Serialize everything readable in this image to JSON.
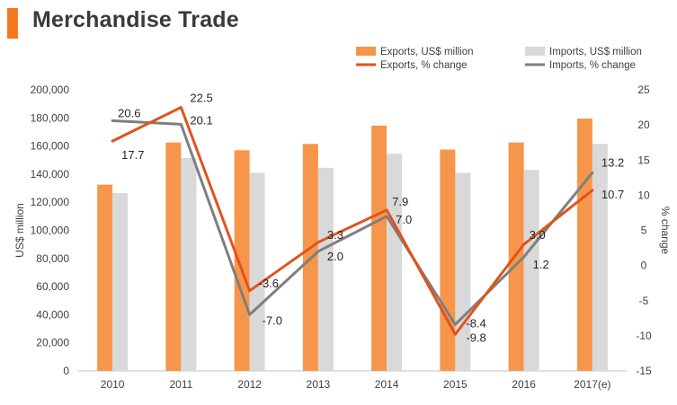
{
  "page": {
    "title": "Merchandise Trade",
    "accent_color": "#F47A20"
  },
  "chart_data": {
    "type": "bar",
    "title": "Merchandise Trade",
    "categories": [
      "2010",
      "2011",
      "2012",
      "2013",
      "2014",
      "2015",
      "2016",
      "2017(e)"
    ],
    "ylabel": "US$ million",
    "y2label": "% change",
    "ylim": [
      0,
      200000
    ],
    "yticks": [
      "0",
      "20,000",
      "40,000",
      "60,000",
      "80,000",
      "100,000",
      "120,000",
      "140,000",
      "160,000",
      "180,000",
      "200,000"
    ],
    "y2lim": [
      -15,
      25
    ],
    "y2ticks": [
      "-15",
      "-10",
      "-5",
      "0",
      "5",
      "10",
      "15",
      "20",
      "25"
    ],
    "grid": false,
    "legend_position": "top-right",
    "bar_series": [
      {
        "name": "Exports, US$ million",
        "color": "#F7964A",
        "values": [
          132500,
          162500,
          157000,
          161500,
          174500,
          157500,
          162500,
          179500
        ]
      },
      {
        "name": "Imports, US$ million",
        "color": "#D9D9D9",
        "values": [
          126500,
          151500,
          141000,
          144500,
          154500,
          141000,
          143000,
          161500
        ]
      }
    ],
    "line_series": [
      {
        "name": "Exports, % change",
        "color": "#E0531C",
        "values": [
          17.7,
          22.5,
          -3.6,
          3.3,
          7.9,
          -9.8,
          3.0,
          10.7
        ],
        "labels": [
          "17.7",
          "22.5",
          "-3.6",
          "3.3",
          "7.9",
          "-9.8",
          "3.0",
          "10.7"
        ]
      },
      {
        "name": "Imports, % change",
        "color": "#7F7F7F",
        "values": [
          20.6,
          20.1,
          -7.0,
          2.0,
          7.0,
          -8.4,
          1.2,
          13.2
        ],
        "labels": [
          "20.6",
          "20.1",
          "-7.0",
          "2.0",
          "7.0",
          "-8.4",
          "1.2",
          "13.2"
        ]
      }
    ]
  }
}
